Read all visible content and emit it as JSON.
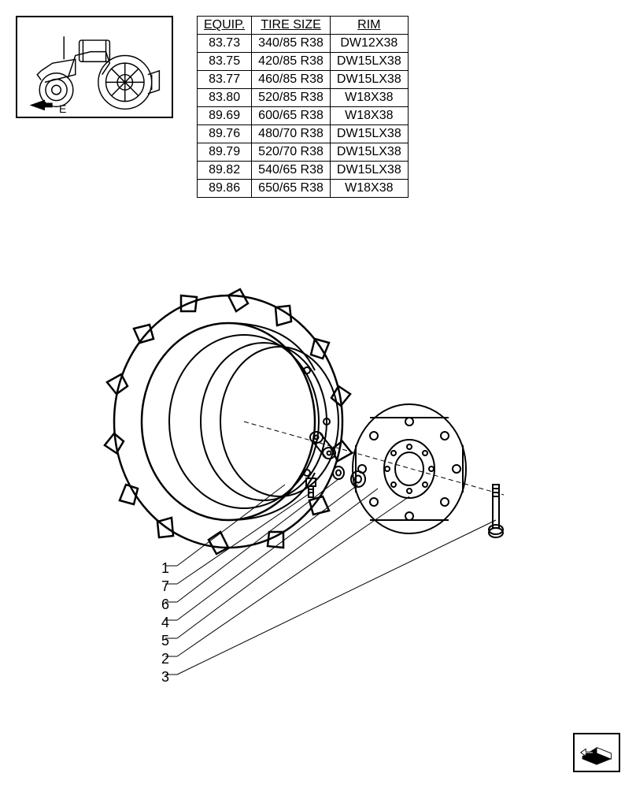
{
  "icon_label": "E",
  "table": {
    "columns": [
      "EQUIP.",
      "TIRE SIZE",
      "RIM"
    ],
    "rows": [
      [
        "83.73",
        "340/85 R38",
        "DW12X38"
      ],
      [
        "83.75",
        "420/85 R38",
        "DW15LX38"
      ],
      [
        "83.77",
        "460/85 R38",
        "DW15LX38"
      ],
      [
        "83.80",
        "520/85 R38",
        "W18X38"
      ],
      [
        "89.69",
        "600/65 R38",
        "W18X38"
      ],
      [
        "89.76",
        "480/70 R38",
        "DW15LX38"
      ],
      [
        "89.79",
        "520/70 R38",
        "DW15LX38"
      ],
      [
        "89.82",
        "540/65 R38",
        "DW15LX38"
      ],
      [
        "89.86",
        "650/65 R38",
        "W18X38"
      ]
    ]
  },
  "callouts": [
    "1",
    "7",
    "6",
    "4",
    "5",
    "2",
    "3"
  ],
  "colors": {
    "stroke": "#000000",
    "bg": "#ffffff"
  },
  "diagram_type": "exploded-parts-illustration"
}
